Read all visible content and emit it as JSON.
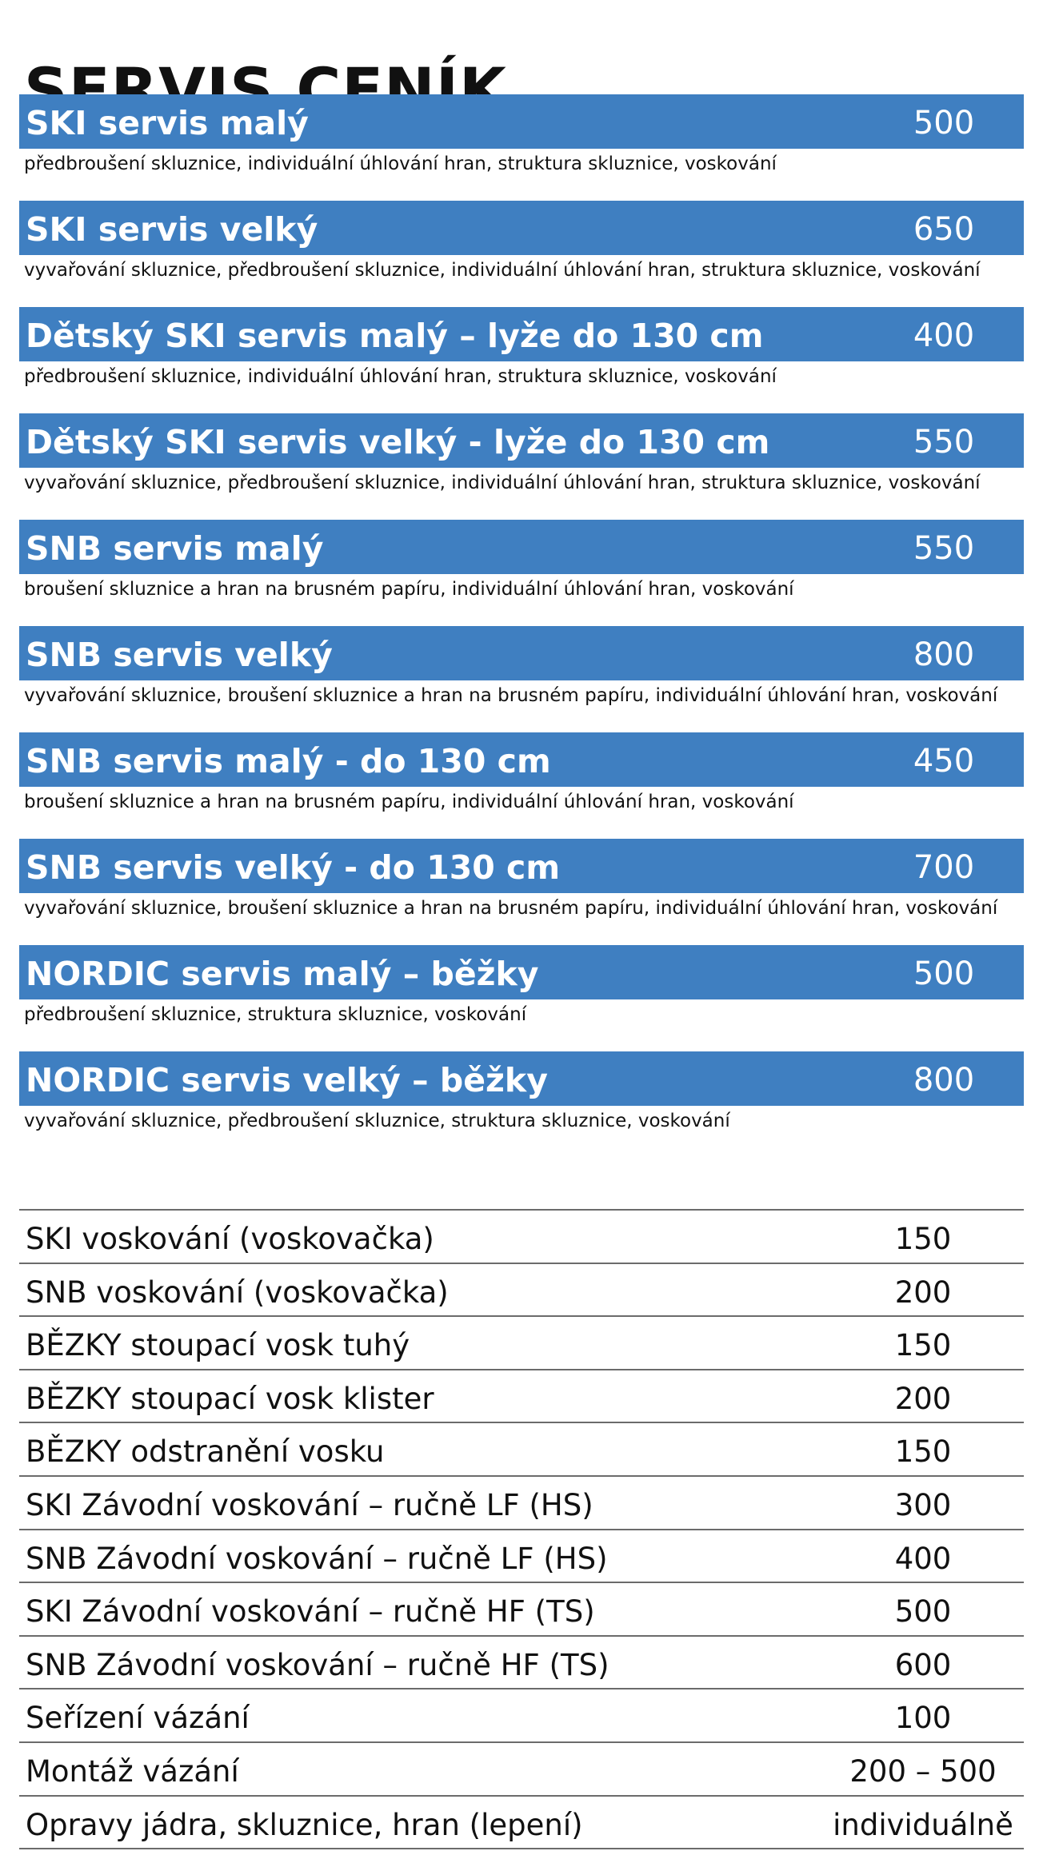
{
  "title": "SERVIS CENÍK",
  "accent_color": "#3f7fc1",
  "services": [
    {
      "name": "SKI servis malý",
      "price": "500",
      "description": "předbroušení skluznice, individuální úhlování hran, struktura skluznice, voskování"
    },
    {
      "name": "SKI servis velký",
      "price": "650",
      "description": "vyvařování skluznice, předbroušení skluznice, individuální úhlování hran, struktura skluznice, voskování"
    },
    {
      "name": "Dětský SKI servis malý – lyže do 130 cm",
      "price": "400",
      "description": "předbroušení skluznice, individuální úhlování hran, struktura skluznice, voskování"
    },
    {
      "name": "Dětský SKI servis velký - lyže do 130 cm",
      "price": "550",
      "description": "vyvařování skluznice, předbroušení skluznice, individuální úhlování hran, struktura skluznice, voskování"
    },
    {
      "name": "SNB servis malý",
      "price": "550",
      "description": "broušení skluznice a hran na brusném papíru, individuální úhlování hran, voskování"
    },
    {
      "name": "SNB servis velký",
      "price": "800",
      "description": "vyvařování skluznice, broušení skluznice a hran na brusném papíru, individuální úhlování hran, voskování"
    },
    {
      "name": "SNB servis malý - do 130 cm",
      "price": "450",
      "description": "broušení skluznice a hran na brusném papíru, individuální úhlování hran, voskování"
    },
    {
      "name": "SNB servis velký - do 130 cm",
      "price": "700",
      "description": "vyvařování skluznice, broušení skluznice a hran na brusném papíru, individuální úhlování hran, voskování"
    },
    {
      "name": "NORDIC servis malý – běžky",
      "price": "500",
      "description": "předbroušení skluznice, struktura skluznice, voskování"
    },
    {
      "name": "NORDIC servis velký – běžky",
      "price": "800",
      "description": "vyvařování skluznice, předbroušení skluznice, struktura skluznice, voskování"
    }
  ],
  "pricelist": [
    {
      "name": "SKI voskování (voskovačka)",
      "price": "150"
    },
    {
      "name": "SNB voskování (voskovačka)",
      "price": "200"
    },
    {
      "name": "BĚZKY stoupací vosk tuhý",
      "price": "150"
    },
    {
      "name": "BĚZKY stoupací vosk klister",
      "price": "200"
    },
    {
      "name": "BĚZKY odstranění vosku",
      "price": "150"
    },
    {
      "name": "SKI Závodní voskování – ručně LF (HS)",
      "price": "300"
    },
    {
      "name": "SNB Závodní voskování – ručně LF (HS)",
      "price": "400"
    },
    {
      "name": "SKI Závodní voskování – ručně HF (TS)",
      "price": "500"
    },
    {
      "name": "SNB Závodní voskování – ručně HF (TS)",
      "price": "600"
    },
    {
      "name": "Seřízení vázání",
      "price": "100"
    },
    {
      "name": "Montáž vázání",
      "price": "200 – 500"
    },
    {
      "name": "Opravy jádra, skluznice, hran (lepení)",
      "price": "individuálně"
    }
  ]
}
